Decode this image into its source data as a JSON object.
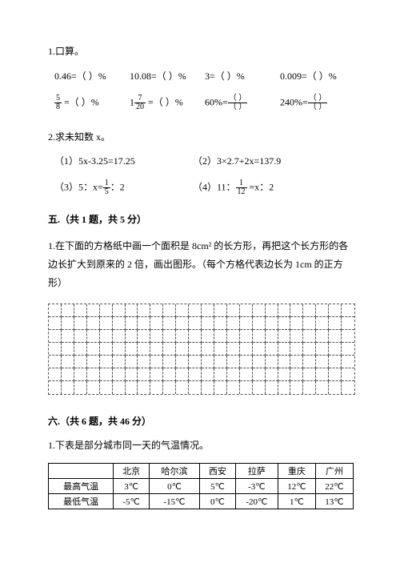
{
  "q1": {
    "title": "1.口算。",
    "row1": {
      "a": "0.46=（  ）%",
      "b": "10.08=（  ）%",
      "c": "3=（  ）%",
      "d": "0.009=（  ）%"
    },
    "row2": {
      "a_pre": " =（  ）%",
      "a_frac": {
        "num": "5",
        "den": "8"
      },
      "b_pre": "1",
      "b_frac": {
        "num": "7",
        "den": "20"
      },
      "b_post": " =（  ）%",
      "c_pre": "60%=",
      "c_frac": {
        "num": "（  ）",
        "den": "（  ）"
      },
      "d_pre": "240%=",
      "d_frac": {
        "num": "（  ）",
        "den": "（  ）"
      }
    }
  },
  "q2": {
    "title": "2.求未知数 x。",
    "items": {
      "a": "（1）5x-3.25=17.25",
      "b": "（2）3×2.7+2x=137.9",
      "c_pre": "（3）5：x=",
      "c_frac": {
        "num": "1",
        "den": "5"
      },
      "c_post": "：2",
      "d_pre": "（4）11：",
      "d_frac": {
        "num": "1",
        "den": "12"
      },
      "d_post": " =x：2"
    }
  },
  "section5": {
    "heading": "五.（共 1 题，共 5 分）",
    "text": "1.在下面的方格纸中画一个面积是 8cm² 的长方形，再把这个长方形的各边长扩大到原来的 2 倍，画出图形。（每个方格代表边长为 1cm 的正方形）"
  },
  "section6": {
    "heading": "六.（共 6 题，共 46 分）",
    "q1": "1.下表是部分城市同一天的气温情况。",
    "table": {
      "headers": [
        "",
        "北京",
        "哈尔滨",
        "西安",
        "拉萨",
        "重庆",
        "广州"
      ],
      "rows": [
        [
          "最高气温",
          "3℃",
          "0℃",
          "5℃",
          "-3℃",
          "12℃",
          "22℃"
        ],
        [
          "最低气温",
          "-5℃",
          "-15℃",
          "0℃",
          "-20℃",
          "1℃",
          "13℃"
        ]
      ]
    }
  }
}
